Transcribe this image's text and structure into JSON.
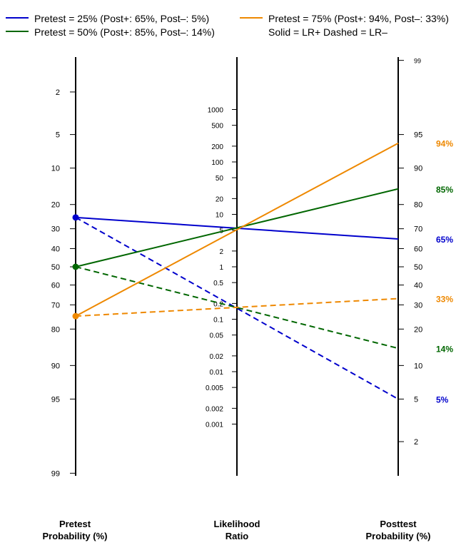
{
  "legend": {
    "items": [
      {
        "label": "Pretest = 25%  (Post+: 65%, Post–: 5%)",
        "color": "#0000cc"
      },
      {
        "label": "Pretest = 75%  (Post+: 94%, Post–: 33%)",
        "color": "#ee8800"
      },
      {
        "label": "Pretest = 50%  (Post+: 85%, Post–: 14%)",
        "color": "#006600"
      }
    ],
    "note": "Solid = LR+   Dashed = LR–"
  },
  "axes": {
    "pretest_title": [
      "Pretest",
      "Probability (%)"
    ],
    "lr_title": [
      "Likelihood",
      "Ratio"
    ],
    "posttest_title": [
      "Posttest",
      "Probability (%)"
    ]
  },
  "chart_data": {
    "type": "nomogram",
    "title": "",
    "pretest_ticks": [
      "2",
      "5",
      "10",
      "20",
      "30",
      "40",
      "50",
      "60",
      "70",
      "80",
      "90",
      "95",
      "99"
    ],
    "lr_ticks": [
      "1000",
      "500",
      "200",
      "100",
      "50",
      "20",
      "10",
      "5",
      "2",
      "1",
      "0.5",
      "0.2",
      "0.1",
      "0.05",
      "0.02",
      "0.01",
      "0.005",
      "0.002",
      "0.001"
    ],
    "posttest_ticks": [
      "99",
      "95",
      "90",
      "80",
      "70",
      "60",
      "50",
      "40",
      "30",
      "20",
      "10",
      "5",
      "2"
    ],
    "lr_positive": 5.6,
    "lr_negative": 0.16,
    "series": [
      {
        "pretest": 25,
        "post_positive": 65,
        "post_negative": 5,
        "color": "#0000cc",
        "post_pos_label": "65%",
        "post_neg_label": "5%"
      },
      {
        "pretest": 50,
        "post_positive": 85,
        "post_negative": 14,
        "color": "#006600",
        "post_pos_label": "85%",
        "post_neg_label": "14%"
      },
      {
        "pretest": 75,
        "post_positive": 94,
        "post_negative": 33,
        "color": "#ee8800",
        "post_pos_label": "94%",
        "post_neg_label": "33%"
      }
    ],
    "line_styles": {
      "lr_positive": "solid",
      "lr_negative": "dashed"
    }
  }
}
